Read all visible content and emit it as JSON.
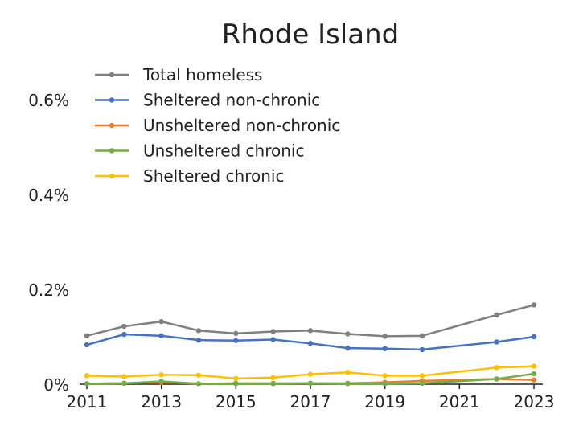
{
  "chart_data": {
    "type": "line",
    "title": "Rhode Island",
    "xlabel": "",
    "ylabel": "",
    "x": [
      2011,
      2012,
      2013,
      2014,
      2015,
      2016,
      2017,
      2018,
      2019,
      2020,
      2022,
      2023
    ],
    "xlim": [
      2011,
      2023
    ],
    "ylim": [
      0,
      0.6
    ],
    "xticks": [
      2011,
      2013,
      2015,
      2017,
      2019,
      2021,
      2023
    ],
    "xtick_labels": [
      "2011",
      "2013",
      "2015",
      "2017",
      "2019",
      "2021",
      "2023"
    ],
    "yticks": [
      0,
      0.2,
      0.4,
      0.6
    ],
    "ytick_labels": [
      "0%",
      "0.2%",
      "0.4%",
      "0.6%"
    ],
    "grid": false,
    "legend_position": "top-left",
    "series": [
      {
        "name": "Total homeless",
        "color": "#808080",
        "values": [
          0.102,
          0.122,
          0.132,
          0.113,
          0.107,
          0.111,
          0.113,
          0.106,
          0.101,
          0.102,
          0.146,
          0.167
        ]
      },
      {
        "name": "Sheltered non-chronic",
        "color": "#4472C4",
        "values": [
          0.083,
          0.105,
          0.102,
          0.093,
          0.092,
          0.094,
          0.086,
          0.076,
          0.075,
          0.073,
          0.089,
          0.1
        ]
      },
      {
        "name": "Unsheltered non-chronic",
        "color": "#ED7D31",
        "values": [
          0.001,
          0.002,
          0.004,
          0.001,
          0.002,
          0.002,
          0.002,
          0.002,
          0.004,
          0.007,
          0.011,
          0.009
        ]
      },
      {
        "name": "Unsheltered chronic",
        "color": "#70AD47",
        "values": [
          0.001,
          0.002,
          0.006,
          0.001,
          0.001,
          0.001,
          0.002,
          0.001,
          0.001,
          0.002,
          0.011,
          0.022
        ]
      },
      {
        "name": "Sheltered chronic",
        "color": "#FFC000",
        "values": [
          0.018,
          0.016,
          0.02,
          0.019,
          0.012,
          0.014,
          0.021,
          0.025,
          0.018,
          0.018,
          0.035,
          0.038
        ]
      }
    ]
  }
}
